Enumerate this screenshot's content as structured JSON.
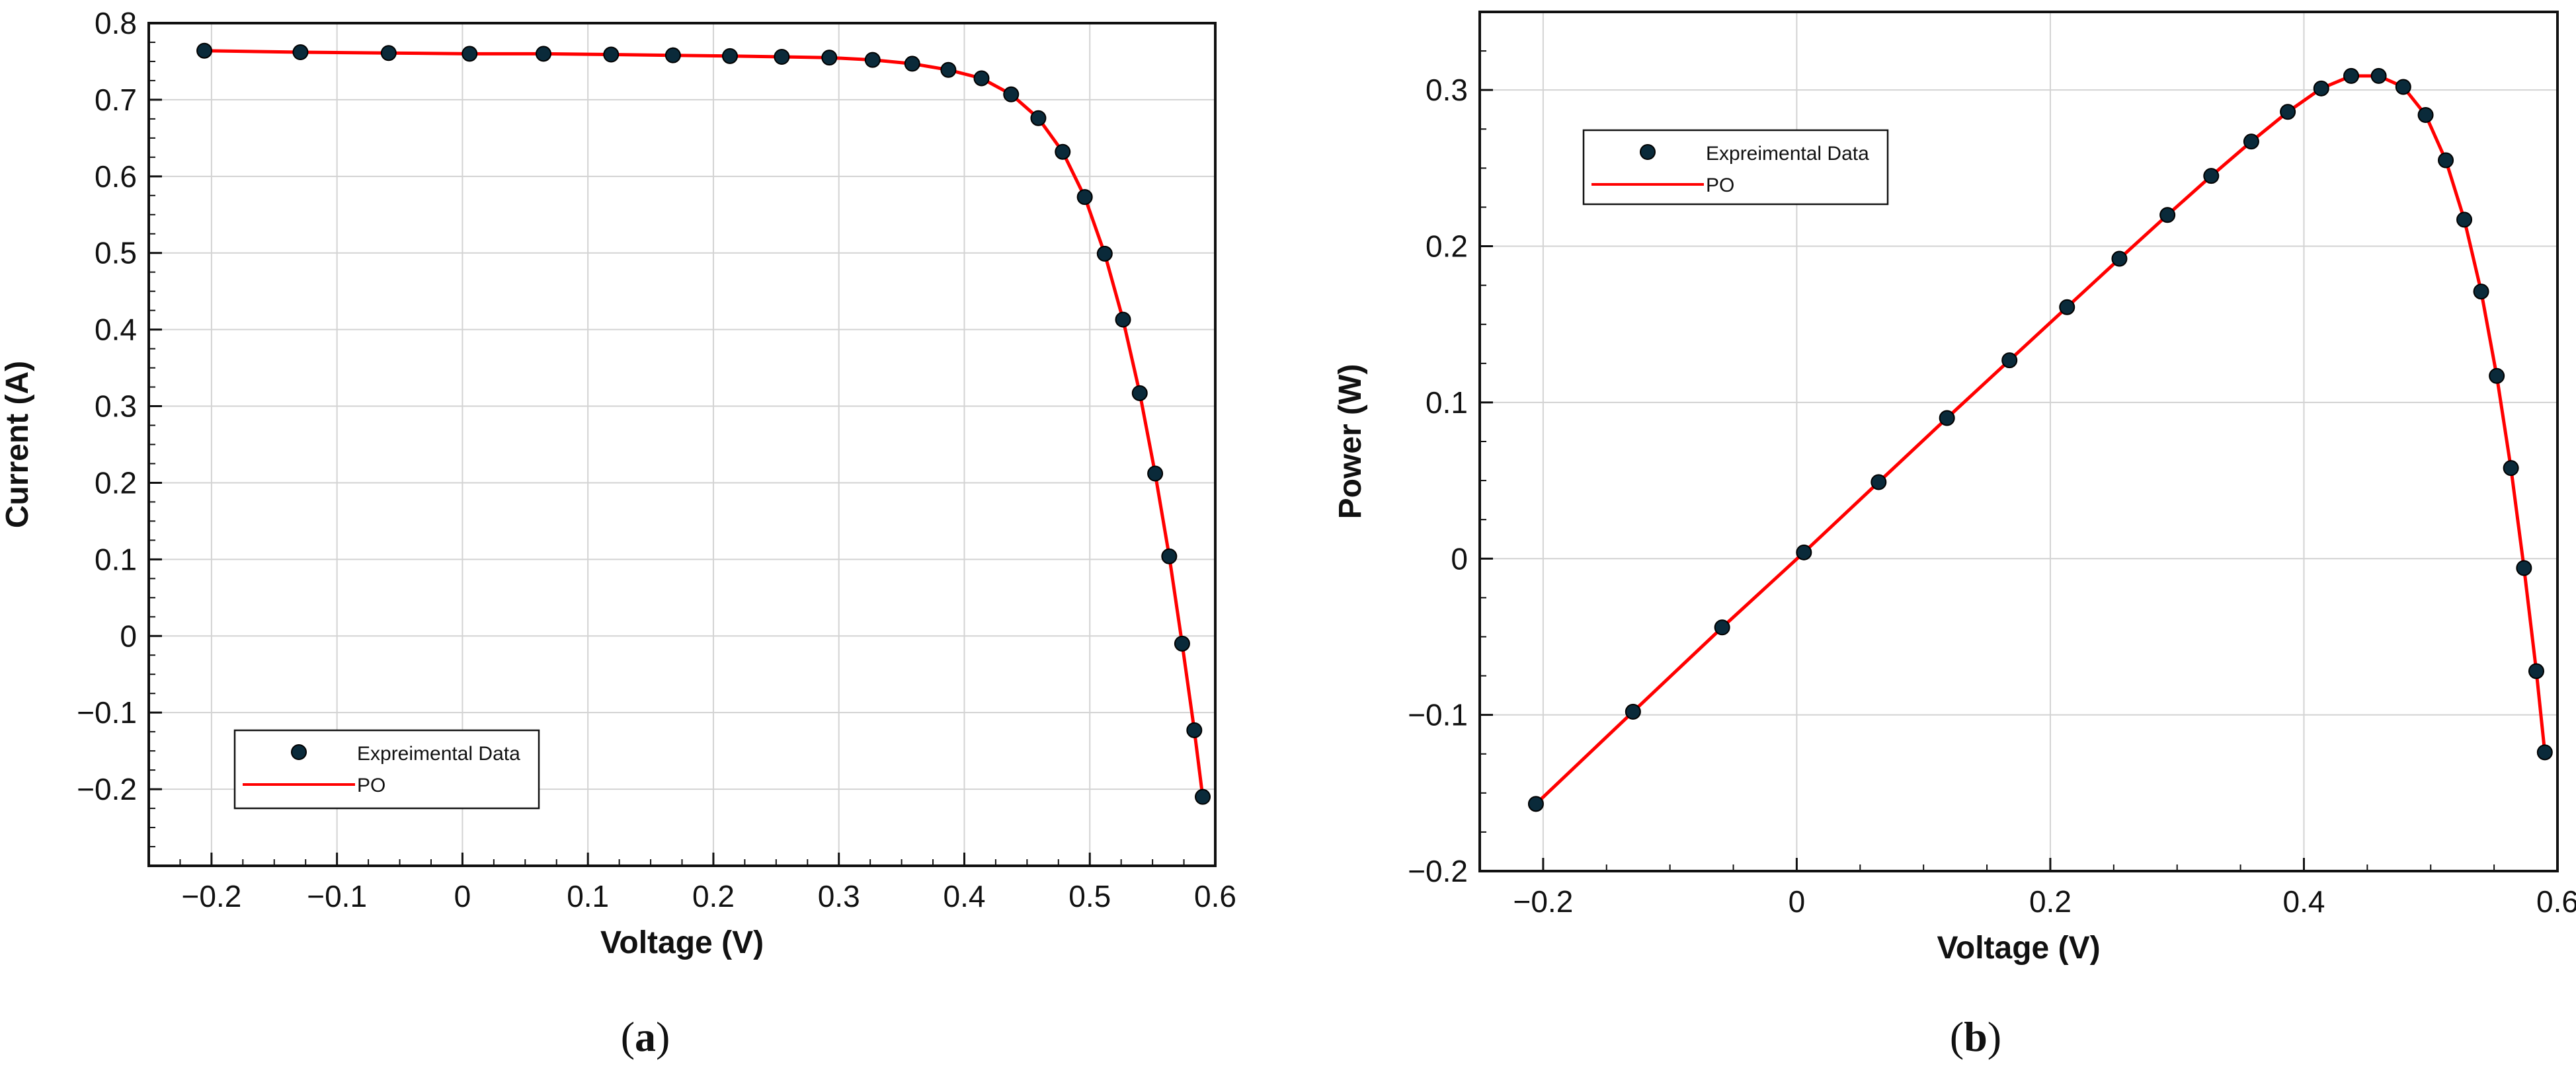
{
  "chart_data": [
    {
      "type": "line",
      "panel": "a",
      "caption_open": "(",
      "caption_letter": "a",
      "caption_close": ")",
      "xlabel": "Voltage (V)",
      "ylabel": "Current (A)",
      "xlim": [
        -0.25,
        0.6
      ],
      "ylim": [
        -0.3,
        0.8
      ],
      "xticks": [
        -0.2,
        -0.1,
        0,
        0.1,
        0.2,
        0.3,
        0.4,
        0.5,
        0.6
      ],
      "xtick_labels": [
        "−0.2",
        "−0.1",
        "0",
        "0.1",
        "0.2",
        "0.3",
        "0.4",
        "0.5",
        "0.6"
      ],
      "yticks": [
        -0.2,
        -0.1,
        0,
        0.1,
        0.2,
        0.3,
        0.4,
        0.5,
        0.6,
        0.7,
        0.8
      ],
      "ytick_labels": [
        "−0.2",
        "−0.1",
        "0",
        "0.1",
        "0.2",
        "0.3",
        "0.4",
        "0.5",
        "0.6",
        "0.7",
        "0.8"
      ],
      "grid": true,
      "legend_position": "bottom-left",
      "series": [
        {
          "name": "Expreimental Data",
          "kind": "scatter",
          "color": "#0a2a3a",
          "x": [
            -0.2057,
            -0.1291,
            -0.0588,
            0.0057,
            0.0646,
            0.1185,
            0.1678,
            0.2132,
            0.2545,
            0.2924,
            0.3269,
            0.3585,
            0.3873,
            0.4137,
            0.4373,
            0.459,
            0.4784,
            0.496,
            0.5119,
            0.5265,
            0.5398,
            0.5521,
            0.5633,
            0.5736,
            0.5833,
            0.59
          ],
          "y": [
            0.764,
            0.762,
            0.761,
            0.76,
            0.76,
            0.759,
            0.758,
            0.757,
            0.756,
            0.755,
            0.752,
            0.747,
            0.739,
            0.728,
            0.707,
            0.676,
            0.632,
            0.573,
            0.499,
            0.413,
            0.317,
            0.212,
            0.104,
            -0.01,
            -0.123,
            -0.21
          ]
        },
        {
          "name": "PO",
          "kind": "line",
          "color": "#ff0000",
          "x": [
            -0.2057,
            -0.1291,
            -0.0588,
            0.0057,
            0.0646,
            0.1185,
            0.1678,
            0.2132,
            0.2545,
            0.2924,
            0.3269,
            0.3585,
            0.3873,
            0.4137,
            0.4373,
            0.459,
            0.4784,
            0.496,
            0.5119,
            0.5265,
            0.5398,
            0.5521,
            0.5633,
            0.5736,
            0.5833,
            0.59
          ],
          "y": [
            0.764,
            0.762,
            0.761,
            0.76,
            0.76,
            0.759,
            0.758,
            0.757,
            0.756,
            0.755,
            0.752,
            0.747,
            0.739,
            0.728,
            0.707,
            0.676,
            0.632,
            0.573,
            0.499,
            0.413,
            0.317,
            0.212,
            0.104,
            -0.01,
            -0.123,
            -0.21
          ]
        }
      ]
    },
    {
      "type": "line",
      "panel": "b",
      "caption_open": "(",
      "caption_letter": "b",
      "caption_close": ")",
      "xlabel": "Voltage (V)",
      "ylabel": "Power (W)",
      "xlim": [
        -0.25,
        0.6
      ],
      "ylim": [
        -0.2,
        0.35
      ],
      "xticks": [
        -0.2,
        0,
        0.2,
        0.4,
        0.6
      ],
      "xtick_labels": [
        "−0.2",
        "0",
        "0.2",
        "0.4",
        "0.6"
      ],
      "yticks": [
        -0.2,
        -0.1,
        0,
        0.1,
        0.2,
        0.3
      ],
      "ytick_labels": [
        "−0.2",
        "−0.1",
        "0",
        "0.1",
        "0.2",
        "0.3"
      ],
      "grid": true,
      "legend_position": "top-left",
      "series": [
        {
          "name": "Expreimental Data",
          "kind": "scatter",
          "color": "#0a2a3a",
          "x": [
            -0.2057,
            -0.1291,
            -0.0588,
            0.0057,
            0.0646,
            0.1185,
            0.1678,
            0.2132,
            0.2545,
            0.2924,
            0.3269,
            0.3585,
            0.3873,
            0.4137,
            0.4373,
            0.459,
            0.4784,
            0.496,
            0.5119,
            0.5265,
            0.5398,
            0.5521,
            0.5633,
            0.5736,
            0.5833,
            0.59
          ],
          "y": [
            -0.157,
            -0.098,
            -0.044,
            0.004,
            0.049,
            0.09,
            0.127,
            0.161,
            0.192,
            0.22,
            0.245,
            0.267,
            0.286,
            0.301,
            0.309,
            0.309,
            0.302,
            0.284,
            0.255,
            0.217,
            0.171,
            0.117,
            0.058,
            -0.006,
            -0.072,
            -0.124
          ]
        },
        {
          "name": "PO",
          "kind": "line",
          "color": "#ff0000",
          "x": [
            -0.2057,
            -0.1291,
            -0.0588,
            0.0057,
            0.0646,
            0.1185,
            0.1678,
            0.2132,
            0.2545,
            0.2924,
            0.3269,
            0.3585,
            0.3873,
            0.4137,
            0.4373,
            0.459,
            0.4784,
            0.496,
            0.5119,
            0.5265,
            0.5398,
            0.5521,
            0.5633,
            0.5736,
            0.5833,
            0.59
          ],
          "y": [
            -0.157,
            -0.098,
            -0.044,
            0.004,
            0.049,
            0.09,
            0.127,
            0.161,
            0.192,
            0.22,
            0.245,
            0.267,
            0.286,
            0.301,
            0.309,
            0.309,
            0.302,
            0.284,
            0.255,
            0.217,
            0.171,
            0.117,
            0.058,
            -0.006,
            -0.072,
            -0.124
          ]
        }
      ]
    }
  ]
}
